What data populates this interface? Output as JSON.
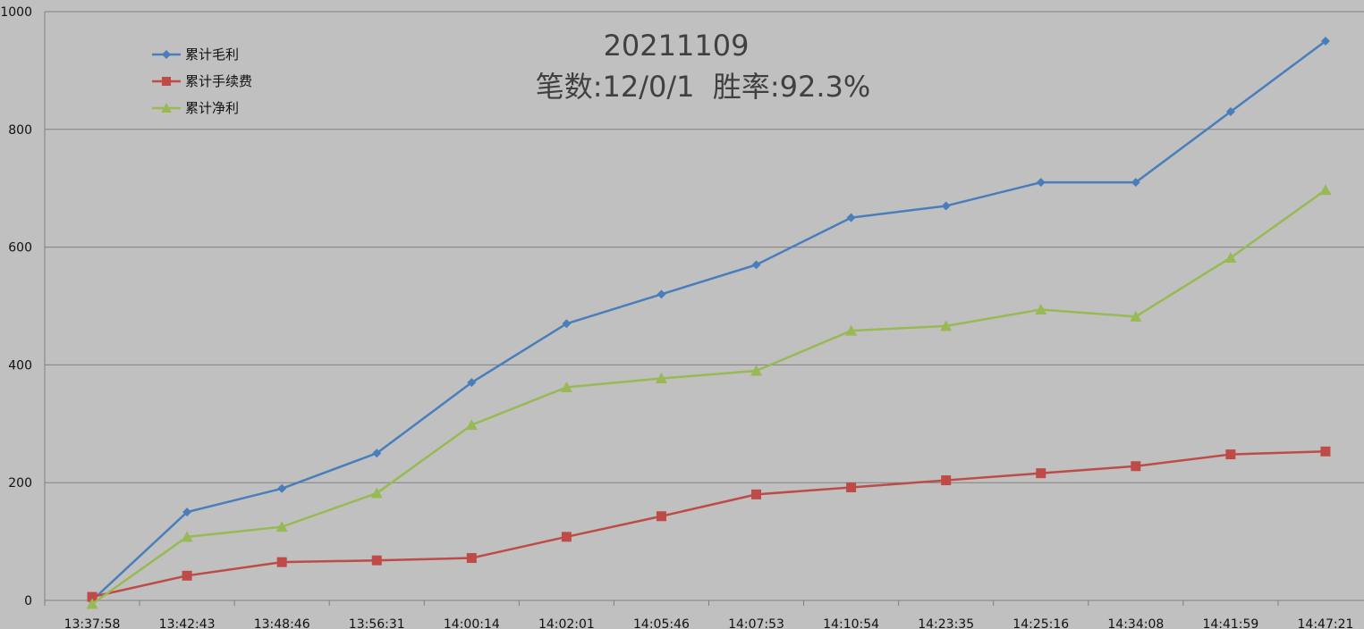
{
  "chart_data": {
    "type": "line",
    "title": "20211109",
    "subtitle": "笔数:12/0/1  胜率:92.3%",
    "xlabel": "",
    "ylabel": "",
    "categories": [
      "13:37:58",
      "13:42:43",
      "13:48:46",
      "13:56:31",
      "14:00:14",
      "14:02:01",
      "14:05:46",
      "14:07:53",
      "14:10:54",
      "14:23:35",
      "14:25:16",
      "14:34:08",
      "14:41:59",
      "14:47:21"
    ],
    "ylim": [
      0,
      1000
    ],
    "yticks": [
      0,
      200,
      400,
      600,
      800,
      1000
    ],
    "grid": true,
    "legend_position": "top-left",
    "series": [
      {
        "name": "累计毛利",
        "color": "#4a7ebb",
        "marker": "diamond",
        "values": [
          0,
          150,
          190,
          250,
          370,
          470,
          520,
          570,
          650,
          670,
          710,
          710,
          830,
          950
        ]
      },
      {
        "name": "累计手续费",
        "color": "#be4b48",
        "marker": "square",
        "values": [
          6,
          42,
          65,
          68,
          72,
          108,
          143,
          180,
          192,
          204,
          216,
          228,
          248,
          253
        ]
      },
      {
        "name": "累计净利",
        "color": "#98b954",
        "marker": "triangle",
        "values": [
          -6,
          108,
          125,
          182,
          298,
          362,
          377,
          390,
          458,
          466,
          494,
          482,
          582,
          697
        ]
      }
    ]
  }
}
